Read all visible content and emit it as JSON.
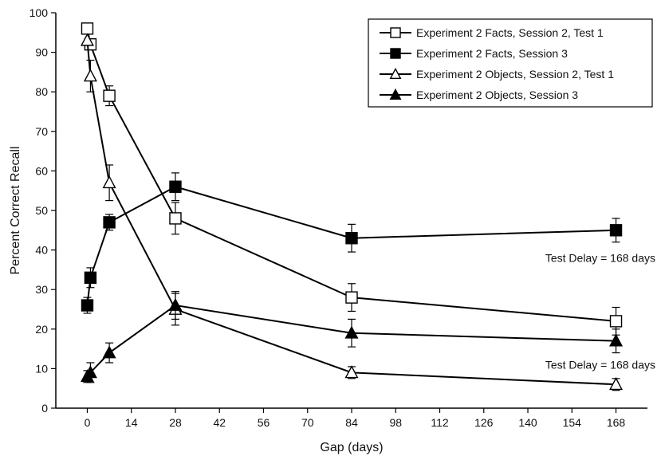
{
  "chart_data": {
    "type": "line",
    "xlabel": "Gap (days)",
    "ylabel": "Percent Correct Recall",
    "xlim": [
      -10,
      178
    ],
    "ylim": [
      0,
      100
    ],
    "xticks": [
      0,
      14,
      28,
      42,
      56,
      70,
      84,
      98,
      112,
      126,
      140,
      154,
      168
    ],
    "yticks": [
      0,
      10,
      20,
      30,
      40,
      50,
      60,
      70,
      80,
      90,
      100
    ],
    "grid": false,
    "legend_position": "top-right",
    "series": [
      {
        "name": "Experiment 2 Facts, Session 2, Test 1",
        "marker": "square-open",
        "x": [
          0,
          1,
          7,
          28,
          84,
          168
        ],
        "y": [
          96,
          92,
          79,
          48,
          28,
          22
        ],
        "err": [
          0,
          0,
          2.5,
          4,
          3.5,
          3.5
        ]
      },
      {
        "name": "Experiment 2 Facts, Session 3",
        "marker": "square-filled",
        "x": [
          0,
          1,
          7,
          28,
          84,
          168
        ],
        "y": [
          26,
          33,
          47,
          56,
          43,
          45
        ],
        "err": [
          2,
          2.5,
          2,
          3.5,
          3.5,
          3
        ]
      },
      {
        "name": "Experiment 2 Objects, Session 2, Test 1",
        "marker": "triangle-open",
        "x": [
          0,
          1,
          7,
          28,
          84,
          168
        ],
        "y": [
          93,
          84,
          57,
          25,
          9,
          6
        ],
        "err": [
          0,
          4,
          4.5,
          4,
          1.5,
          1.5
        ]
      },
      {
        "name": "Experiment 2 Objects, Session 3",
        "marker": "triangle-filled",
        "x": [
          0,
          1,
          7,
          28,
          84,
          168
        ],
        "y": [
          8,
          9,
          14,
          26,
          19,
          17
        ],
        "err": [
          1.5,
          2.5,
          2.5,
          3.5,
          3.5,
          3
        ]
      }
    ],
    "annotations": [
      {
        "text": "Test Delay = 168 days",
        "x": 168,
        "y": 38,
        "anchor": "end"
      },
      {
        "text": "Test Delay = 168 days",
        "x": 168,
        "y": 11,
        "anchor": "end"
      }
    ]
  }
}
